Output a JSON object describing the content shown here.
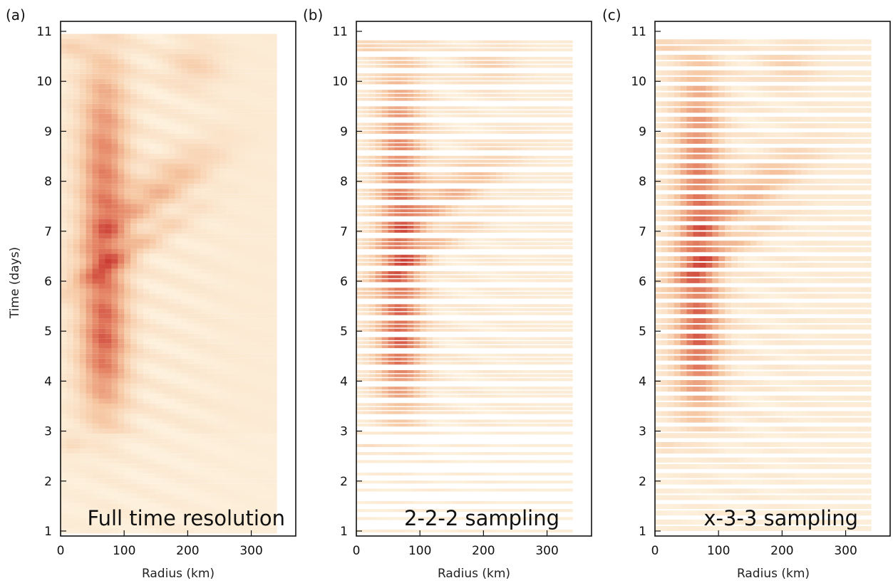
{
  "colors": {
    "low": "#fdf1dd",
    "mid": "#f6c7a2",
    "high": "#e58666",
    "peak": "#c62d2a",
    "frame": "#111111"
  },
  "chart_data": [
    {
      "type": "heatmap",
      "panel_label": "(a)",
      "annotation": "Full time resolution",
      "sampling": "full",
      "xlabel": "Radius (km)",
      "ylabel": "Time (days)",
      "xlim": [
        0,
        370
      ],
      "ylim": [
        0.9,
        11.2
      ],
      "data_xmax": 340,
      "xticks": [
        0,
        100,
        200,
        300
      ],
      "yticks": [
        1,
        2,
        3,
        4,
        5,
        6,
        7,
        8,
        9,
        10,
        11
      ],
      "x_tick_labels": [
        "0",
        "100",
        "200",
        "300"
      ],
      "y_tick_labels": [
        "1",
        "2",
        "3",
        "4",
        "5",
        "6",
        "7",
        "8",
        "9",
        "10",
        "11"
      ]
    },
    {
      "type": "heatmap",
      "panel_label": "(b)",
      "annotation": "2-2-2 sampling",
      "sampling": "2-2-2",
      "xlabel": "Radius (km)",
      "ylabel": "",
      "xlim": [
        0,
        370
      ],
      "ylim": [
        0.9,
        11.2
      ],
      "data_xmax": 340,
      "xticks": [
        0,
        100,
        200,
        300
      ],
      "yticks": [
        1,
        2,
        3,
        4,
        5,
        6,
        7,
        8,
        9,
        10,
        11
      ],
      "x_tick_labels": [
        "0",
        "100",
        "200",
        "300"
      ],
      "y_tick_labels": [
        "1",
        "2",
        "3",
        "4",
        "5",
        "6",
        "7",
        "8",
        "9",
        "10",
        "11"
      ]
    },
    {
      "type": "heatmap",
      "panel_label": "(c)",
      "annotation": "x-3-3 sampling",
      "sampling": "x-3-3",
      "xlabel": "Radius (km)",
      "ylabel": "",
      "xlim": [
        0,
        370
      ],
      "ylim": [
        0.9,
        11.2
      ],
      "data_xmax": 340,
      "xticks": [
        0,
        100,
        200,
        300
      ],
      "yticks": [
        1,
        2,
        3,
        4,
        5,
        6,
        7,
        8,
        9,
        10,
        11
      ],
      "x_tick_labels": [
        "0",
        "100",
        "200",
        "300"
      ],
      "y_tick_labels": [
        "1",
        "2",
        "3",
        "4",
        "5",
        "6",
        "7",
        "8",
        "9",
        "10",
        "11"
      ]
    }
  ]
}
